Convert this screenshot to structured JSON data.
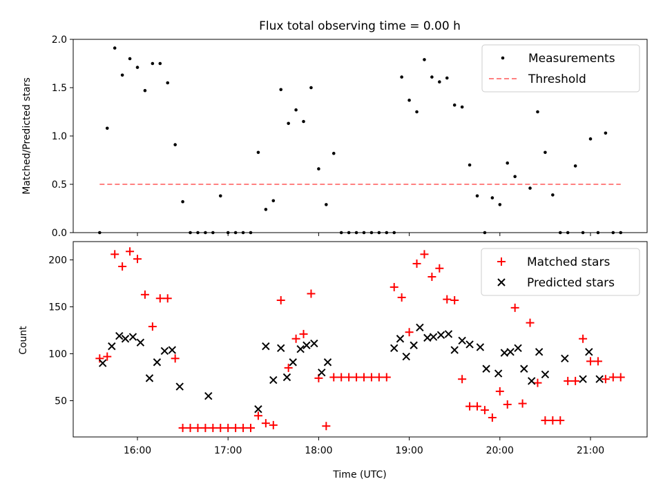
{
  "chart_data": [
    {
      "type": "scatter",
      "title": "Flux total observing time = 0.00 h",
      "xlabel": "",
      "ylabel": "Matched/Predicted stars",
      "ylim": [
        0,
        2.0
      ],
      "yticks": [
        "0.0",
        "0.5",
        "1.0",
        "1.5",
        "2.0"
      ],
      "xlim": [
        "15:30",
        "21:40"
      ],
      "grid": false,
      "legend_position": "top-right",
      "series": [
        {
          "name": "Measurements",
          "marker": "dot",
          "color": "#000000",
          "x": [
            "15:35",
            "15:40",
            "15:45",
            "15:50",
            "15:55",
            "16:00",
            "16:05",
            "16:10",
            "16:15",
            "16:20",
            "16:25",
            "16:30",
            "16:35",
            "16:40",
            "16:45",
            "16:50",
            "16:55",
            "17:00",
            "17:05",
            "17:10",
            "17:15",
            "17:20",
            "17:25",
            "17:30",
            "17:35",
            "17:40",
            "17:45",
            "17:50",
            "17:55",
            "18:00",
            "18:05",
            "18:10",
            "18:15",
            "18:20",
            "18:25",
            "18:30",
            "18:35",
            "18:40",
            "18:45",
            "18:50",
            "18:55",
            "19:00",
            "19:05",
            "19:10",
            "19:15",
            "19:20",
            "19:25",
            "19:30",
            "19:35",
            "19:40",
            "19:45",
            "19:50",
            "19:55",
            "20:00",
            "20:05",
            "20:10",
            "20:15",
            "20:20",
            "20:25",
            "20:30",
            "20:35",
            "20:40",
            "20:45",
            "20:50",
            "20:55",
            "21:00",
            "21:05",
            "21:10",
            "21:15",
            "21:20"
          ],
          "y": [
            0.0,
            1.08,
            1.91,
            1.63,
            1.8,
            1.71,
            1.47,
            1.75,
            1.75,
            1.55,
            0.91,
            0.32,
            0.0,
            0.0,
            0.0,
            0.0,
            0.38,
            0.0,
            0.0,
            0.0,
            0.0,
            0.83,
            0.24,
            0.33,
            1.48,
            1.13,
            1.27,
            1.15,
            1.5,
            0.66,
            0.29,
            0.82,
            0.0,
            0.0,
            0.0,
            0.0,
            0.0,
            0.0,
            0.0,
            0.0,
            1.61,
            1.37,
            1.25,
            1.79,
            1.61,
            1.56,
            1.6,
            1.32,
            1.3,
            0.7,
            0.38,
            0.0,
            0.36,
            0.29,
            0.72,
            0.58,
            1.49,
            0.46,
            1.25,
            0.83,
            0.39,
            0.0,
            0.0,
            0.69,
            0.0,
            0.97,
            0.0,
            1.03,
            0.0,
            0.0
          ]
        },
        {
          "name": "Threshold",
          "marker": "dashed-line",
          "color": "#ff8080",
          "x": [
            "15:35",
            "21:20"
          ],
          "y": [
            0.5,
            0.5
          ]
        }
      ]
    },
    {
      "type": "scatter",
      "title": "",
      "xlabel": "Time (UTC)",
      "ylabel": "Count",
      "ylim": [
        10,
        218
      ],
      "yticks": [
        "50",
        "100",
        "150",
        "200"
      ],
      "xticks": [
        "16:00",
        "17:00",
        "18:00",
        "19:00",
        "20:00",
        "21:00"
      ],
      "xlim": [
        "15:30",
        "21:40"
      ],
      "grid": false,
      "legend_position": "top-right",
      "series": [
        {
          "name": "Matched stars",
          "marker": "plus",
          "color": "#ff0000",
          "x": [
            "15:35",
            "15:40",
            "15:45",
            "15:50",
            "15:55",
            "16:00",
            "16:05",
            "16:10",
            "16:15",
            "16:20",
            "16:25",
            "16:30",
            "16:35",
            "16:40",
            "16:45",
            "16:50",
            "16:55",
            "17:00",
            "17:05",
            "17:10",
            "17:15",
            "17:20",
            "17:25",
            "17:30",
            "17:35",
            "17:40",
            "17:45",
            "17:50",
            "17:55",
            "18:00",
            "18:05",
            "18:10",
            "18:15",
            "18:20",
            "18:25",
            "18:30",
            "18:35",
            "18:40",
            "18:45",
            "18:50",
            "18:55",
            "19:00",
            "19:05",
            "19:10",
            "19:15",
            "19:20",
            "19:25",
            "19:30",
            "19:35",
            "19:40",
            "19:45",
            "19:50",
            "19:55",
            "20:00",
            "20:05",
            "20:10",
            "20:15",
            "20:20",
            "20:25",
            "20:30",
            "20:35",
            "20:40",
            "20:45",
            "20:50",
            "20:55",
            "21:00",
            "21:05",
            "21:10",
            "21:15",
            "21:20"
          ],
          "y": [
            95,
            97,
            206,
            193,
            209,
            201,
            163,
            129,
            159,
            159,
            95,
            21,
            21,
            21,
            21,
            21,
            21,
            21,
            21,
            21,
            21,
            34,
            26,
            24,
            157,
            85,
            116,
            121,
            164,
            74,
            23,
            75,
            75,
            75,
            75,
            75,
            75,
            75,
            75,
            171,
            160,
            123,
            196,
            206,
            182,
            191,
            158,
            157,
            73,
            44,
            44,
            40,
            32,
            60,
            46,
            149,
            47,
            133,
            69,
            29,
            29,
            29,
            71,
            71,
            116,
            92,
            92,
            73,
            75,
            75
          ]
        },
        {
          "name": "Predicted stars",
          "marker": "x",
          "color": "#000000",
          "x": [
            "15:37",
            "15:43",
            "15:48",
            "15:52",
            "15:57",
            "16:02",
            "16:08",
            "16:13",
            "16:18",
            "16:23",
            "16:28",
            "16:47",
            "17:20",
            "17:25",
            "17:30",
            "17:35",
            "17:39",
            "17:43",
            "17:48",
            "17:52",
            "17:57",
            "18:02",
            "18:06",
            "18:50",
            "18:54",
            "18:58",
            "19:03",
            "19:07",
            "19:12",
            "19:16",
            "19:21",
            "19:26",
            "19:30",
            "19:35",
            "19:40",
            "19:47",
            "19:51",
            "19:59",
            "20:03",
            "20:07",
            "20:12",
            "20:16",
            "20:21",
            "20:26",
            "20:30",
            "20:43",
            "20:55",
            "20:59",
            "21:06"
          ],
          "y": [
            90,
            108,
            119,
            116,
            118,
            112,
            74,
            91,
            103,
            104,
            65,
            55,
            41,
            108,
            72,
            106,
            75,
            91,
            105,
            109,
            111,
            80,
            91,
            106,
            116,
            97,
            109,
            128,
            117,
            118,
            120,
            121,
            104,
            114,
            110,
            107,
            84,
            79,
            101,
            102,
            106,
            84,
            71,
            102,
            78,
            95,
            73,
            102,
            73
          ]
        }
      ]
    }
  ]
}
